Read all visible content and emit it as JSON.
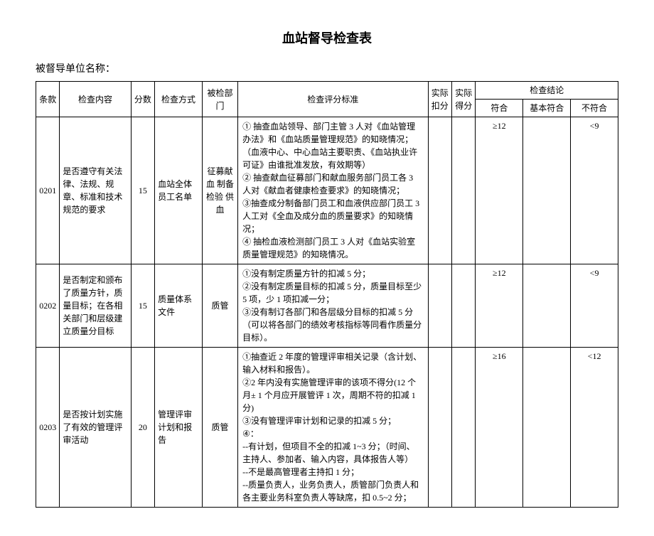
{
  "doc": {
    "title": "血站督导检查表",
    "subtitle_label": "被督导单位名称：",
    "headers": {
      "clause": "条款",
      "content": "检查内容",
      "score": "分数",
      "method": "检查方式",
      "dept": "被检部门",
      "criteria": "检查评分标准",
      "deduct": "实际扣分",
      "actual": "实际得分",
      "conclusion": "检查结论",
      "pass": "符合",
      "basic": "基本符合",
      "fail": "不符合"
    },
    "rows": [
      {
        "clause": "0201",
        "content": "是否遵守有关法律、法规、规章、标准和技术规范的要求",
        "score": "15",
        "method": "血站全体员工名单",
        "dept": "征募献血 制备 检验 供血",
        "criteria_lines": [
          "① 抽查血站领导、部门主管 3 人对《血站管理办法》和《血站质量管理规范》的知晓情况；（血液中心、中心血站主要职责、《血站执业许可证》由谁批准发放，有效期等）",
          "② 抽查献血征募部门和献血服务部门员工各 3 人对《献血者健康检查要求》的知晓情况；",
          "③抽查成分制备部门员工和血液供应部门员工 3 人工对《全血及成分血的质量要求》的知晓情况；",
          "④ 抽检血液检测部门员工 3 人对《血站实验室质量管理规范》的知晓情况。"
        ],
        "pass": "≥12",
        "basic": "",
        "fail": "<9"
      },
      {
        "clause": "0202",
        "content": "是否制定和颁布了质量方针，质量目标；在各相关部门和层级建立质量分目标",
        "score": "15",
        "method": "质量体系文件",
        "dept": "质管",
        "criteria_lines": [
          "①没有制定质量方针的扣减 5 分；",
          "②没有制定质量目标的扣减 5 分，质量目标至少 5 项，少 1 项扣减一分；",
          "③没有制订各部门和各层级分目标的扣减 5 分（可以将各部门的绩效考核指标等同看作质量分目标）。"
        ],
        "pass": "≥12",
        "basic": "",
        "fail": "<9"
      },
      {
        "clause": "0203",
        "content": "是否按计划实施了有效的管理评审活动",
        "score": "20",
        "method": "管理评审计划和报告",
        "dept": "质管",
        "criteria_lines": [
          "①抽查近 2 年度的管理评审相关记录（含计划、输入材料和报告）。",
          "②2 年内没有实施管理评审的该项不得分(12 个月± 1 个月应开展管评 1 次，周期不符的扣减 1 分)",
          "③没有管理评审计划和记录的扣减 5 分；",
          "④：",
          "--有计划，但项目不全的扣减 1~3 分；（时间、主持人、参加者、输入内容，具体报告人等）",
          "--不是最高管理者主持扣 1 分；",
          "--质量负责人，业务负责人，质管部门负责人和各主要业务科室负责人等缺席，扣 0.5~2 分；"
        ],
        "pass": "≥16",
        "basic": "",
        "fail": "<12"
      }
    ]
  }
}
